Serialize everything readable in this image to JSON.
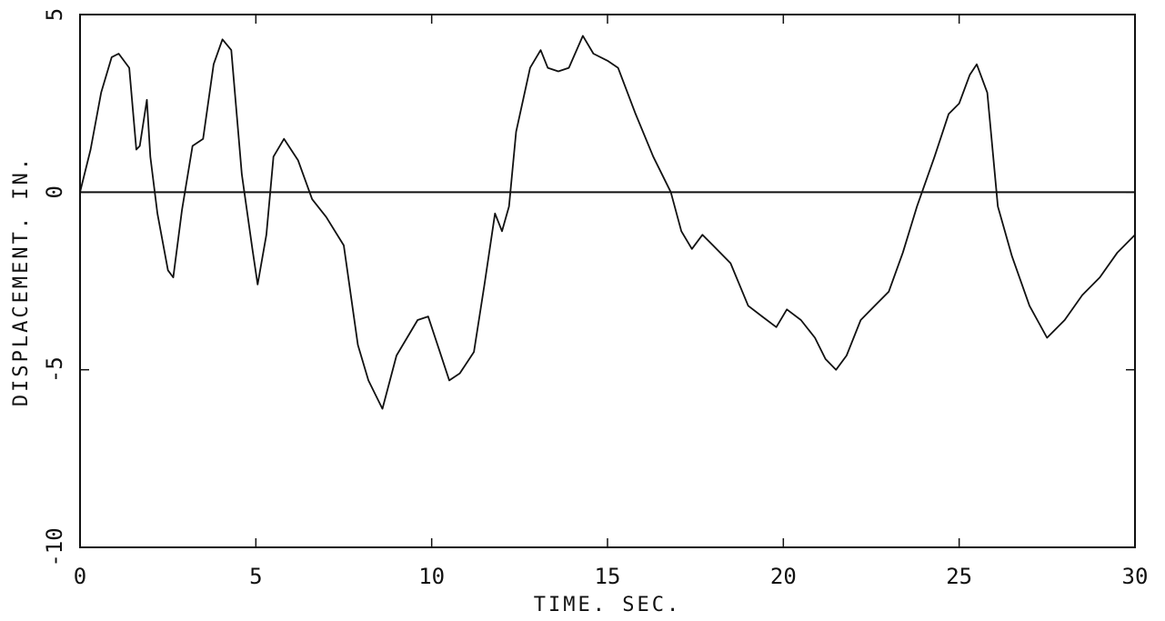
{
  "chart_data": {
    "type": "line",
    "title": "",
    "xlabel": "TIME. SEC.",
    "ylabel": "DISPLACEMENT. IN.",
    "xlim": [
      0,
      30
    ],
    "ylim": [
      -10,
      5
    ],
    "x_ticks": [
      0,
      5,
      10,
      15,
      20,
      25,
      30
    ],
    "x_tick_labels": [
      "0",
      "5",
      "10",
      "15",
      "20",
      "25",
      "30"
    ],
    "y_ticks": [
      5,
      0,
      -5,
      -10
    ],
    "y_tick_labels": [
      "5",
      "0",
      "-5",
      "-10"
    ],
    "zero_line": true,
    "grid": false,
    "legend": "none",
    "line_color": "#111111",
    "series": [
      {
        "x": [
          0,
          0.3,
          0.6,
          0.9,
          1.1,
          1.4,
          1.6,
          1.7,
          1.9,
          2.0,
          2.2,
          2.5,
          2.65,
          2.9,
          3.2,
          3.5,
          3.8,
          4.05,
          4.3,
          4.6,
          4.9,
          5.05,
          5.3,
          5.5,
          5.8,
          6.2,
          6.6,
          7.0,
          7.5,
          7.9,
          8.2,
          8.6,
          9.0,
          9.3,
          9.6,
          9.9,
          10.2,
          10.5,
          10.8,
          11.2,
          11.5,
          11.8,
          12.0,
          12.2,
          12.4,
          12.8,
          13.1,
          13.3,
          13.6,
          13.9,
          14.3,
          14.6,
          15.0,
          15.3,
          15.8,
          16.3,
          16.8,
          17.1,
          17.4,
          17.7,
          18.0,
          18.5,
          19.0,
          19.4,
          19.8,
          20.1,
          20.5,
          20.9,
          21.2,
          21.5,
          21.8,
          22.2,
          22.6,
          23.0,
          23.4,
          23.8,
          24.3,
          24.7,
          25.0,
          25.3,
          25.5,
          25.8,
          26.1,
          26.5,
          27.0,
          27.5,
          28.0,
          28.5,
          29.0,
          29.5,
          30.0
        ],
        "y": [
          0.0,
          1.2,
          2.8,
          3.8,
          3.9,
          3.5,
          1.2,
          1.3,
          2.6,
          1.0,
          -0.6,
          -2.2,
          -2.4,
          -0.5,
          1.3,
          1.5,
          3.6,
          4.3,
          4.0,
          0.5,
          -1.6,
          -2.6,
          -1.2,
          1.0,
          1.5,
          0.9,
          -0.2,
          -0.7,
          -1.5,
          -4.3,
          -5.3,
          -6.1,
          -4.6,
          -4.1,
          -3.6,
          -3.5,
          -4.4,
          -5.3,
          -5.1,
          -4.5,
          -2.6,
          -0.6,
          -1.1,
          -0.4,
          1.7,
          3.5,
          4.0,
          3.5,
          3.4,
          3.5,
          4.4,
          3.9,
          3.7,
          3.5,
          2.2,
          1.0,
          0.0,
          -1.1,
          -1.6,
          -1.2,
          -1.5,
          -2.0,
          -3.2,
          -3.5,
          -3.8,
          -3.3,
          -3.6,
          -4.1,
          -4.7,
          -5.0,
          -4.6,
          -3.6,
          -3.2,
          -2.8,
          -1.7,
          -0.4,
          1.0,
          2.2,
          2.5,
          3.3,
          3.6,
          2.8,
          -0.4,
          -1.8,
          -3.2,
          -4.1,
          -3.6,
          -2.9,
          -2.4,
          -1.7,
          -1.2
        ]
      }
    ]
  }
}
